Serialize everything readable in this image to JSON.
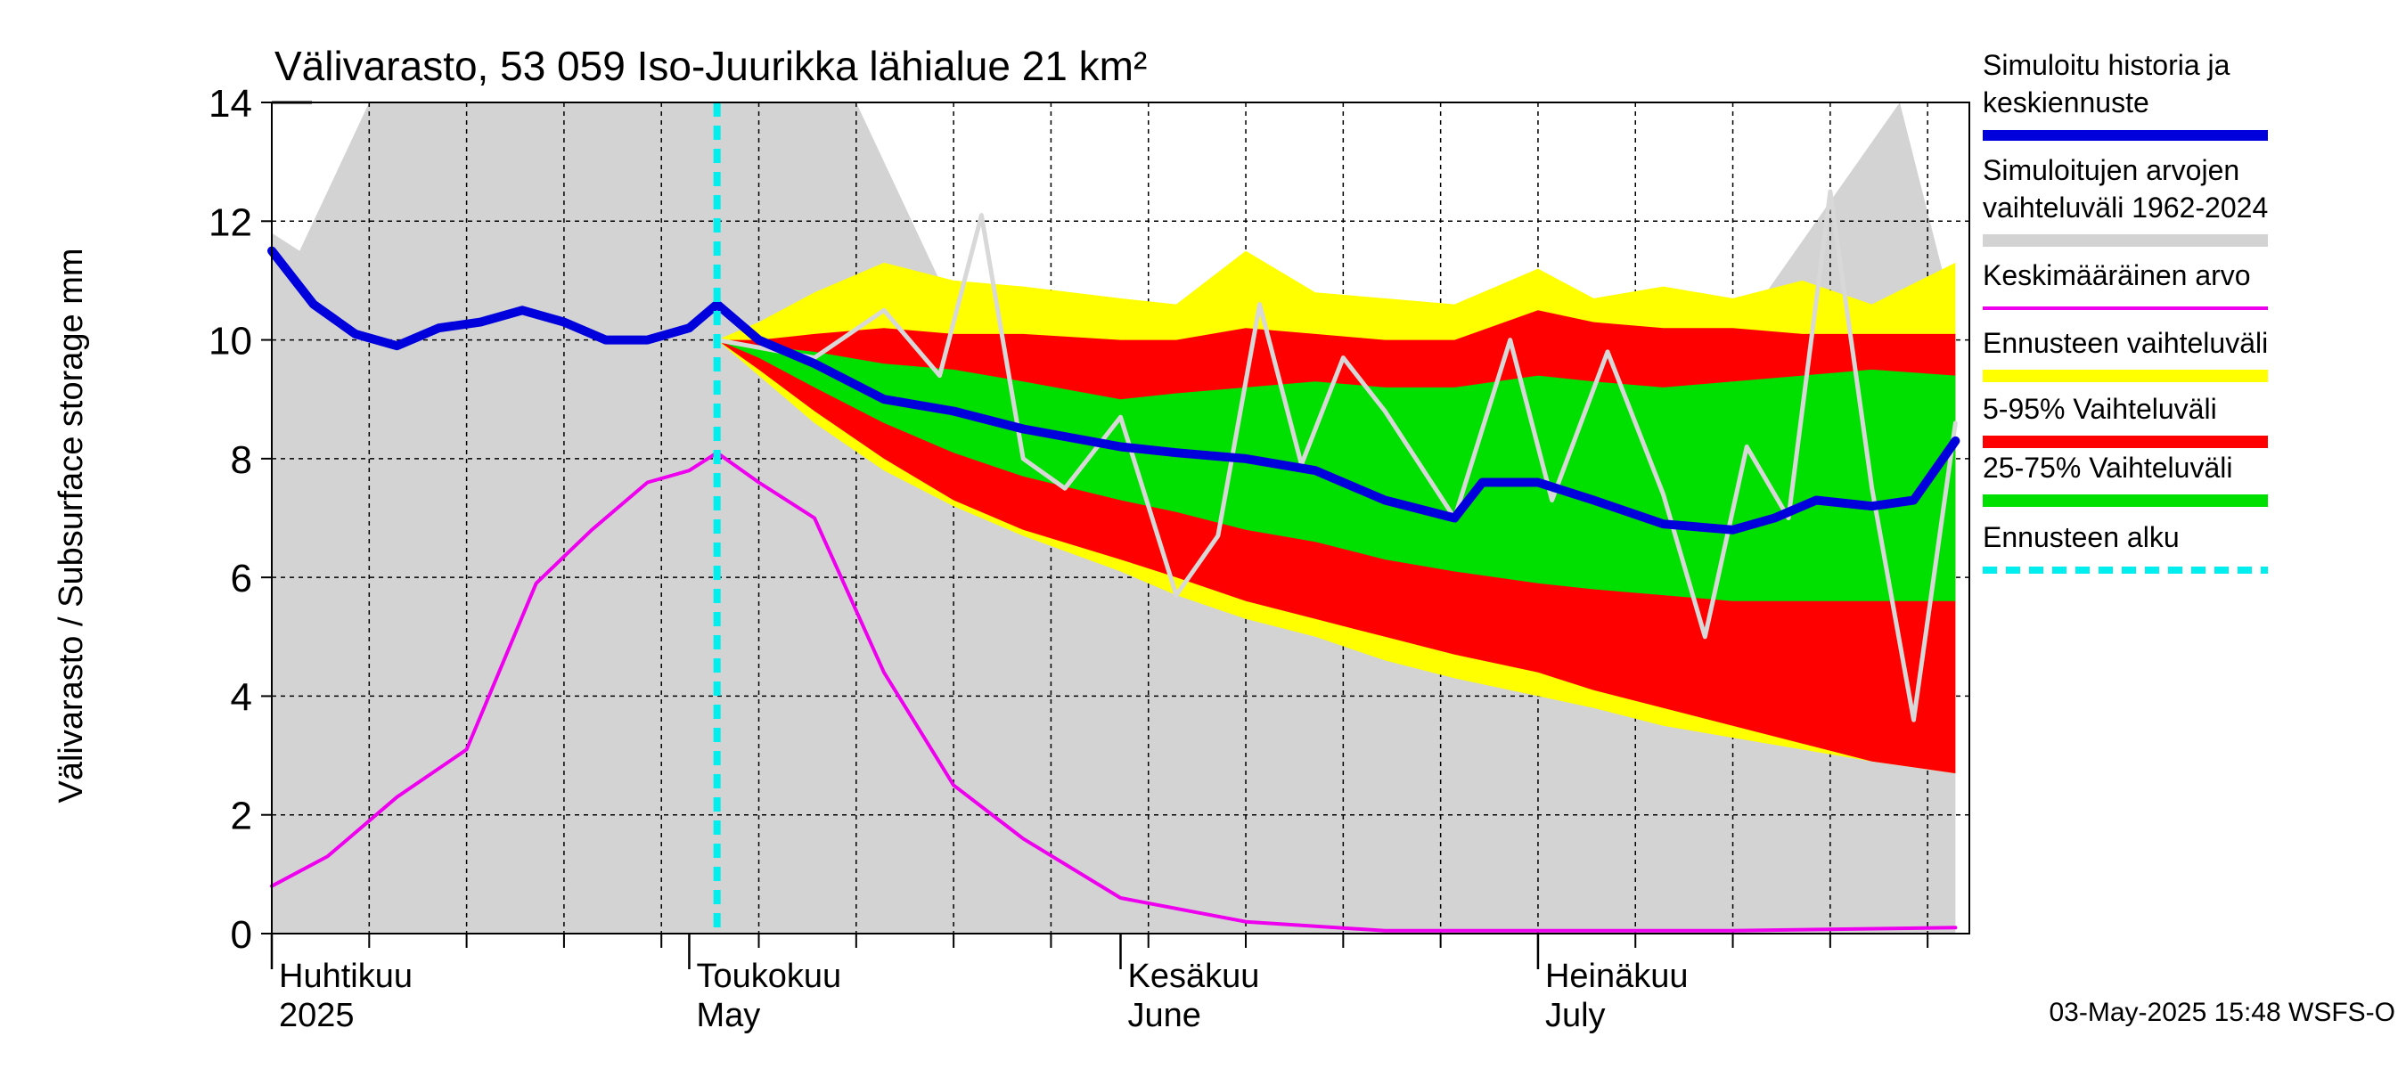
{
  "chart_data": {
    "type": "area",
    "title": "Välivarasto, 53 059 Iso-Juurikka lähialue 21 km²",
    "ylabel": "Välivarasto / Subsurface storage  mm",
    "ylim": [
      0,
      14
    ],
    "yticks": [
      "0",
      "2",
      "4",
      "6",
      "8",
      "10",
      "12",
      "14"
    ],
    "x_start": "2025-04-01",
    "x_end": "2025-07-31",
    "forecast_start": "2025-05-03",
    "months": [
      {
        "label_fi": "Huhtikuu",
        "label_en": "2025",
        "date": "2025-04-01"
      },
      {
        "label_fi": "Toukokuu",
        "label_en": "May",
        "date": "2025-05-01"
      },
      {
        "label_fi": "Kesäkuu",
        "label_en": "June",
        "date": "2025-06-01"
      },
      {
        "label_fi": "Heinäkuu",
        "label_en": "July",
        "date": "2025-07-01"
      }
    ],
    "grid": true,
    "legend_position": "right",
    "colors": {
      "history_range": "#d3d3d3",
      "forecast_range": "#ffff00",
      "p5_95": "#ff0000",
      "p25_75": "#00e000",
      "mean": "#ee00ee",
      "median": "#0000dd",
      "forecast_start": "#00eeee",
      "sample_year": "#d8d8d8"
    },
    "series": [
      {
        "name": "Simuloitu historia ja keskiennuste",
        "key": "median",
        "x": [
          "2025-04-01",
          "2025-04-04",
          "2025-04-07",
          "2025-04-10",
          "2025-04-13",
          "2025-04-16",
          "2025-04-19",
          "2025-04-22",
          "2025-04-25",
          "2025-04-28",
          "2025-05-01",
          "2025-05-03",
          "2025-05-06",
          "2025-05-10",
          "2025-05-15",
          "2025-05-20",
          "2025-05-25",
          "2025-06-01",
          "2025-06-05",
          "2025-06-10",
          "2025-06-15",
          "2025-06-20",
          "2025-06-25",
          "2025-06-27",
          "2025-07-01",
          "2025-07-05",
          "2025-07-10",
          "2025-07-15",
          "2025-07-18",
          "2025-07-21",
          "2025-07-25",
          "2025-07-28",
          "2025-07-31"
        ],
        "y": [
          11.5,
          10.6,
          10.1,
          9.9,
          10.2,
          10.3,
          10.5,
          10.3,
          10.0,
          10.0,
          10.2,
          10.6,
          10.0,
          9.6,
          9.0,
          8.8,
          8.5,
          8.2,
          8.1,
          8.0,
          7.8,
          7.3,
          7.0,
          7.6,
          7.6,
          7.3,
          6.9,
          6.8,
          7.0,
          7.3,
          7.2,
          7.3,
          8.3
        ]
      },
      {
        "name": "Keskimääräinen arvo",
        "key": "mean",
        "x": [
          "2025-04-01",
          "2025-04-05",
          "2025-04-10",
          "2025-04-15",
          "2025-04-20",
          "2025-04-24",
          "2025-04-28",
          "2025-05-01",
          "2025-05-03",
          "2025-05-06",
          "2025-05-10",
          "2025-05-15",
          "2025-05-20",
          "2025-05-25",
          "2025-06-01",
          "2025-06-10",
          "2025-06-20",
          "2025-07-01",
          "2025-07-15",
          "2025-07-31"
        ],
        "y": [
          0.8,
          1.3,
          2.3,
          3.1,
          5.9,
          6.8,
          7.6,
          7.8,
          8.1,
          7.6,
          7.0,
          4.4,
          2.5,
          1.6,
          0.6,
          0.2,
          0.05,
          0.05,
          0.05,
          0.1
        ]
      },
      {
        "name": "Simuloitujen arvojen vaihteluväli 1962-2024",
        "key": "history_range",
        "x": [
          "2025-04-01",
          "2025-04-03",
          "2025-04-05",
          "2025-04-08",
          "2025-04-10",
          "2025-04-15",
          "2025-04-20",
          "2025-04-25",
          "2025-04-30",
          "2025-05-05",
          "2025-05-10",
          "2025-05-13",
          "2025-05-16",
          "2025-05-20",
          "2025-05-25",
          "2025-06-01",
          "2025-06-15",
          "2025-07-01",
          "2025-07-15",
          "2025-07-27",
          "2025-07-31"
        ],
        "y_min": [
          0,
          0,
          0,
          0,
          0,
          0,
          0,
          0,
          0,
          0,
          0,
          0,
          0,
          0,
          0,
          0,
          0,
          0,
          0,
          0,
          0
        ],
        "y_max": [
          11.8,
          11.5,
          12.5,
          14,
          14,
          14,
          14,
          14,
          14,
          14,
          14,
          14,
          12.5,
          10.5,
          10.5,
          10.3,
          10.1,
          10.0,
          10.0,
          14,
          10.3
        ]
      },
      {
        "name": "Ennusteen vaihteluväli",
        "key": "forecast_range",
        "x": [
          "2025-05-03",
          "2025-05-06",
          "2025-05-10",
          "2025-05-15",
          "2025-05-20",
          "2025-05-25",
          "2025-06-01",
          "2025-06-05",
          "2025-06-10",
          "2025-06-15",
          "2025-06-20",
          "2025-06-25",
          "2025-07-01",
          "2025-07-05",
          "2025-07-10",
          "2025-07-15",
          "2025-07-20",
          "2025-07-25",
          "2025-07-31"
        ],
        "y_min": [
          10.0,
          9.4,
          8.6,
          7.8,
          7.2,
          6.7,
          6.1,
          5.7,
          5.3,
          5.0,
          4.6,
          4.3,
          4.0,
          3.8,
          3.5,
          3.3,
          3.1,
          2.9,
          2.7
        ],
        "y_max": [
          10.0,
          10.3,
          10.8,
          11.3,
          11.0,
          10.9,
          10.7,
          10.6,
          11.5,
          10.8,
          10.7,
          10.6,
          11.2,
          10.7,
          10.9,
          10.7,
          11.0,
          10.6,
          11.3
        ]
      },
      {
        "name": "5-95% Vaihteluväli",
        "key": "p5_95",
        "x": [
          "2025-05-03",
          "2025-05-06",
          "2025-05-10",
          "2025-05-15",
          "2025-05-20",
          "2025-05-25",
          "2025-06-01",
          "2025-06-05",
          "2025-06-10",
          "2025-06-15",
          "2025-06-20",
          "2025-06-25",
          "2025-07-01",
          "2025-07-05",
          "2025-07-10",
          "2025-07-15",
          "2025-07-20",
          "2025-07-25",
          "2025-07-31"
        ],
        "y_min": [
          10.0,
          9.5,
          8.8,
          8.0,
          7.3,
          6.8,
          6.3,
          6.0,
          5.6,
          5.3,
          5.0,
          4.7,
          4.4,
          4.1,
          3.8,
          3.5,
          3.2,
          2.9,
          2.7
        ],
        "y_max": [
          10.0,
          10.0,
          10.1,
          10.2,
          10.1,
          10.1,
          10.0,
          10.0,
          10.2,
          10.1,
          10.0,
          10.0,
          10.5,
          10.3,
          10.2,
          10.2,
          10.1,
          10.1,
          10.1
        ]
      },
      {
        "name": "25-75% Vaihteluväli",
        "key": "p25_75",
        "x": [
          "2025-05-03",
          "2025-05-06",
          "2025-05-10",
          "2025-05-15",
          "2025-05-20",
          "2025-05-25",
          "2025-06-01",
          "2025-06-05",
          "2025-06-10",
          "2025-06-15",
          "2025-06-20",
          "2025-06-25",
          "2025-07-01",
          "2025-07-05",
          "2025-07-10",
          "2025-07-15",
          "2025-07-20",
          "2025-07-25",
          "2025-07-31"
        ],
        "y_min": [
          10.0,
          9.7,
          9.2,
          8.6,
          8.1,
          7.7,
          7.3,
          7.1,
          6.8,
          6.6,
          6.3,
          6.1,
          5.9,
          5.8,
          5.7,
          5.6,
          5.6,
          5.6,
          5.6
        ],
        "y_max": [
          10.0,
          9.9,
          9.8,
          9.6,
          9.5,
          9.3,
          9.0,
          9.1,
          9.2,
          9.3,
          9.2,
          9.2,
          9.4,
          9.3,
          9.2,
          9.3,
          9.4,
          9.5,
          9.4
        ]
      },
      {
        "name": "",
        "key": "sample_year",
        "x": [
          "2025-05-03",
          "2025-05-10",
          "2025-05-15",
          "2025-05-19",
          "2025-05-22",
          "2025-05-25",
          "2025-05-28",
          "2025-06-01",
          "2025-06-05",
          "2025-06-08",
          "2025-06-11",
          "2025-06-14",
          "2025-06-17",
          "2025-06-20",
          "2025-06-25",
          "2025-06-29",
          "2025-07-02",
          "2025-07-06",
          "2025-07-10",
          "2025-07-13",
          "2025-07-16",
          "2025-07-19",
          "2025-07-22",
          "2025-07-25",
          "2025-07-28",
          "2025-07-31"
        ],
        "y": [
          10.0,
          9.7,
          10.5,
          9.4,
          12.1,
          8.0,
          7.5,
          8.7,
          5.7,
          6.7,
          10.6,
          7.9,
          9.7,
          8.8,
          7.0,
          10.0,
          7.3,
          9.8,
          7.4,
          5.0,
          8.2,
          7.0,
          12.5,
          7.5,
          3.6,
          8.6
        ]
      }
    ],
    "footer": "03-May-2025 15:48 WSFS-O"
  }
}
